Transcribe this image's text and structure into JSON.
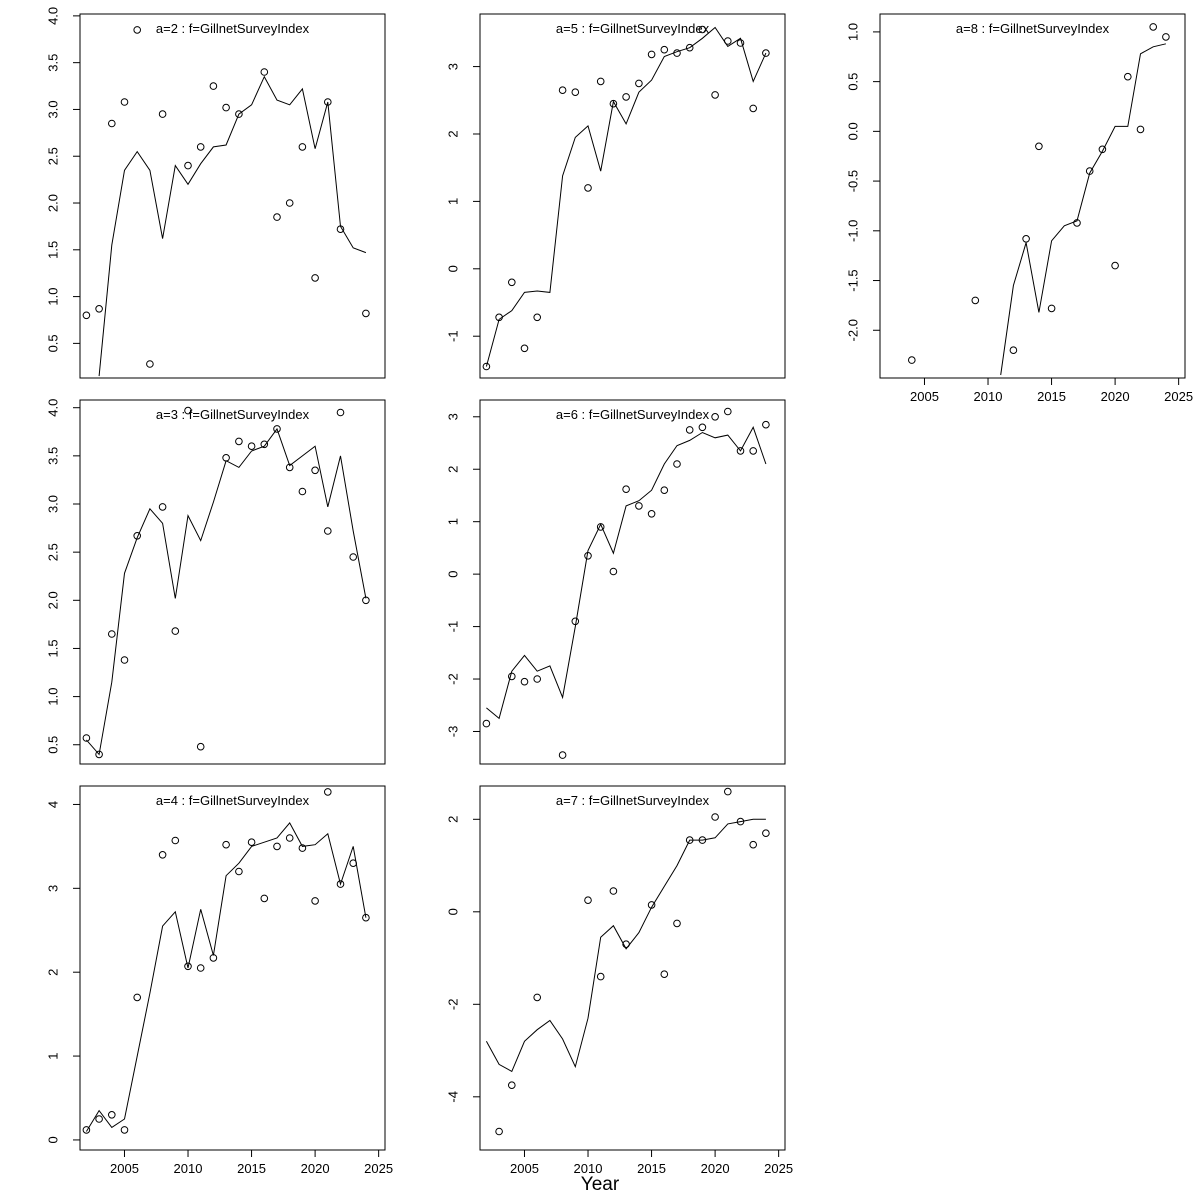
{
  "figure": {
    "xlabel": "Year",
    "xlim": [
      2001.5,
      2025.5
    ],
    "xtick_values": [
      2005,
      2010,
      2015,
      2020,
      2025
    ],
    "xtick_labels": [
      "2005",
      "2010",
      "2015",
      "2020",
      "2025"
    ],
    "line_color": "#000000",
    "point_color": "#000000",
    "title_color": "#7d7d7d",
    "grid_on": false,
    "legend": "none"
  },
  "chart_data": [
    {
      "type": "line",
      "title": "a=2  :  f=GillnetSurveyIndex",
      "age": 2,
      "fleet": "GillnetSurveyIndex",
      "grid_cell": 0,
      "show_x_labels": false,
      "ylim": [
        0.13,
        4.02
      ],
      "ytick_values": [
        0.5,
        1.0,
        1.5,
        2.0,
        2.5,
        3.0,
        3.5,
        4.0
      ],
      "ytick_labels": [
        "0.5",
        "1.0",
        "1.5",
        "2.0",
        "2.5",
        "3.0",
        "3.5",
        "4.0"
      ],
      "points": {
        "x": [
          2002,
          2003,
          2004,
          2005,
          2006,
          2007,
          2008,
          2010,
          2011,
          2012,
          2013,
          2014,
          2016,
          2017,
          2018,
          2019,
          2020,
          2021,
          2022,
          2024
        ],
        "y": [
          0.8,
          0.87,
          2.85,
          3.08,
          3.85,
          0.28,
          2.95,
          2.4,
          2.6,
          3.25,
          3.02,
          2.95,
          3.4,
          1.85,
          2.0,
          2.6,
          1.2,
          3.08,
          1.72,
          0.82
        ]
      },
      "line": {
        "x": [
          2003,
          2004,
          2005,
          2006,
          2007,
          2008,
          2009,
          2010,
          2011,
          2012,
          2013,
          2014,
          2015,
          2016,
          2017,
          2018,
          2019,
          2020,
          2021,
          2022,
          2023,
          2024
        ],
        "y": [
          0.15,
          1.55,
          2.35,
          2.55,
          2.35,
          1.62,
          2.4,
          2.2,
          2.42,
          2.6,
          2.62,
          2.95,
          3.05,
          3.35,
          3.1,
          3.05,
          3.22,
          2.58,
          3.08,
          1.75,
          1.52,
          1.47
        ]
      }
    },
    {
      "type": "line",
      "title": "a=5  :  f=GillnetSurveyIndex",
      "age": 5,
      "fleet": "GillnetSurveyIndex",
      "grid_cell": 1,
      "show_x_labels": false,
      "ylim": [
        -1.62,
        3.78
      ],
      "ytick_values": [
        -1,
        0,
        1,
        2,
        3
      ],
      "ytick_labels": [
        "-1",
        "0",
        "1",
        "2",
        "3"
      ],
      "points": {
        "x": [
          2002,
          2003,
          2004,
          2005,
          2006,
          2008,
          2009,
          2010,
          2011,
          2012,
          2013,
          2014,
          2015,
          2016,
          2017,
          2018,
          2019,
          2020,
          2021,
          2022,
          2023,
          2024
        ],
        "y": [
          -1.45,
          -0.72,
          -0.2,
          -1.18,
          -0.72,
          2.65,
          2.62,
          1.2,
          2.78,
          2.45,
          2.55,
          2.75,
          3.18,
          3.25,
          3.2,
          3.28,
          3.55,
          2.58,
          3.38,
          3.35,
          2.38,
          3.2
        ]
      },
      "line": {
        "x": [
          2002,
          2003,
          2004,
          2005,
          2006,
          2007,
          2008,
          2009,
          2010,
          2011,
          2012,
          2013,
          2014,
          2015,
          2016,
          2017,
          2018,
          2019,
          2020,
          2021,
          2022,
          2023,
          2024
        ],
        "y": [
          -1.45,
          -0.75,
          -0.62,
          -0.35,
          -0.33,
          -0.35,
          1.38,
          1.95,
          2.12,
          1.45,
          2.48,
          2.15,
          2.62,
          2.8,
          3.15,
          3.22,
          3.28,
          3.42,
          3.58,
          3.3,
          3.42,
          2.78,
          3.2
        ]
      }
    },
    {
      "type": "line",
      "title": "a=8  :  f=GillnetSurveyIndex",
      "age": 8,
      "fleet": "GillnetSurveyIndex",
      "grid_cell": 2,
      "show_x_labels": true,
      "ylim": [
        -2.48,
        1.18
      ],
      "ytick_values": [
        -2.0,
        -1.5,
        -1.0,
        -0.5,
        0.0,
        0.5,
        1.0
      ],
      "ytick_labels": [
        "-2.0",
        "-1.5",
        "-1.0",
        "-0.5",
        "0.0",
        "0.5",
        "1.0"
      ],
      "points": {
        "x": [
          2004,
          2009,
          2012,
          2013,
          2014,
          2015,
          2017,
          2018,
          2019,
          2020,
          2021,
          2022,
          2023,
          2024
        ],
        "y": [
          -2.3,
          -1.7,
          -2.2,
          -1.08,
          -0.15,
          -1.78,
          -0.92,
          -0.4,
          -0.18,
          -1.35,
          0.55,
          0.02,
          1.05,
          0.95
        ]
      },
      "line": {
        "x": [
          2011,
          2012,
          2013,
          2014,
          2015,
          2016,
          2017,
          2018,
          2019,
          2020,
          2021,
          2022,
          2023,
          2024
        ],
        "y": [
          -2.45,
          -1.55,
          -1.12,
          -1.82,
          -1.1,
          -0.95,
          -0.9,
          -0.42,
          -0.2,
          0.05,
          0.05,
          0.78,
          0.85,
          0.88
        ]
      }
    },
    {
      "type": "line",
      "title": "a=3  :  f=GillnetSurveyIndex",
      "age": 3,
      "fleet": "GillnetSurveyIndex",
      "grid_cell": 3,
      "show_x_labels": false,
      "ylim": [
        0.3,
        4.08
      ],
      "ytick_values": [
        0.5,
        1.0,
        1.5,
        2.0,
        2.5,
        3.0,
        3.5,
        4.0
      ],
      "ytick_labels": [
        "0.5",
        "1.0",
        "1.5",
        "2.0",
        "2.5",
        "3.0",
        "3.5",
        "4.0"
      ],
      "points": {
        "x": [
          2002,
          2003,
          2004,
          2005,
          2006,
          2008,
          2009,
          2010,
          2011,
          2013,
          2014,
          2015,
          2016,
          2017,
          2018,
          2019,
          2020,
          2021,
          2022,
          2023,
          2024
        ],
        "y": [
          0.57,
          0.4,
          1.65,
          1.38,
          2.67,
          2.97,
          1.68,
          3.97,
          0.48,
          3.48,
          3.65,
          3.6,
          3.62,
          3.78,
          3.38,
          3.13,
          3.35,
          2.72,
          3.95,
          2.45,
          2.0
        ]
      },
      "line": {
        "x": [
          2002,
          2003,
          2004,
          2005,
          2006,
          2007,
          2008,
          2009,
          2010,
          2011,
          2012,
          2013,
          2014,
          2015,
          2016,
          2017,
          2018,
          2019,
          2020,
          2021,
          2022,
          2023,
          2024
        ],
        "y": [
          0.55,
          0.4,
          1.15,
          2.28,
          2.65,
          2.95,
          2.8,
          2.02,
          2.88,
          2.62,
          3.02,
          3.45,
          3.38,
          3.55,
          3.6,
          3.78,
          3.4,
          3.5,
          3.6,
          2.97,
          3.5,
          2.72,
          2.02
        ]
      }
    },
    {
      "type": "line",
      "title": "a=6  :  f=GillnetSurveyIndex",
      "age": 6,
      "fleet": "GillnetSurveyIndex",
      "grid_cell": 4,
      "show_x_labels": false,
      "ylim": [
        -3.62,
        3.32
      ],
      "ytick_values": [
        -3,
        -2,
        -1,
        0,
        1,
        2,
        3
      ],
      "ytick_labels": [
        "-3",
        "-2",
        "-1",
        "0",
        "1",
        "2",
        "3"
      ],
      "points": {
        "x": [
          2002,
          2004,
          2005,
          2006,
          2008,
          2009,
          2010,
          2011,
          2012,
          2013,
          2014,
          2015,
          2016,
          2017,
          2018,
          2019,
          2020,
          2021,
          2022,
          2023,
          2024
        ],
        "y": [
          -2.85,
          -1.95,
          -2.05,
          -2.0,
          -3.45,
          -0.9,
          0.35,
          0.9,
          0.05,
          1.62,
          1.3,
          1.15,
          1.6,
          2.1,
          2.75,
          2.8,
          3.0,
          3.1,
          2.35,
          2.35,
          2.85
        ]
      },
      "line": {
        "x": [
          2002,
          2003,
          2004,
          2005,
          2006,
          2007,
          2008,
          2009,
          2010,
          2011,
          2012,
          2013,
          2014,
          2015,
          2016,
          2017,
          2018,
          2019,
          2020,
          2021,
          2022,
          2023,
          2024
        ],
        "y": [
          -2.55,
          -2.75,
          -1.85,
          -1.55,
          -1.85,
          -1.75,
          -2.35,
          -1.0,
          0.45,
          0.95,
          0.4,
          1.3,
          1.4,
          1.6,
          2.1,
          2.45,
          2.55,
          2.7,
          2.6,
          2.65,
          2.35,
          2.8,
          2.1
        ]
      }
    },
    {
      "type": "line",
      "title": "a=4  :  f=GillnetSurveyIndex",
      "age": 4,
      "fleet": "GillnetSurveyIndex",
      "grid_cell": 6,
      "show_x_labels": true,
      "ylim": [
        -0.12,
        4.22
      ],
      "ytick_values": [
        0,
        1,
        2,
        3,
        4
      ],
      "ytick_labels": [
        "0",
        "1",
        "2",
        "3",
        "4"
      ],
      "points": {
        "x": [
          2002,
          2003,
          2004,
          2005,
          2006,
          2008,
          2009,
          2010,
          2011,
          2012,
          2013,
          2014,
          2015,
          2016,
          2017,
          2018,
          2019,
          2020,
          2021,
          2022,
          2023,
          2024
        ],
        "y": [
          0.12,
          0.25,
          0.3,
          0.12,
          1.7,
          3.4,
          3.57,
          2.07,
          2.05,
          2.17,
          3.52,
          3.2,
          3.55,
          2.88,
          3.5,
          3.6,
          3.48,
          2.85,
          4.15,
          3.05,
          3.3,
          2.65
        ]
      },
      "line": {
        "x": [
          2002,
          2003,
          2004,
          2005,
          2006,
          2007,
          2008,
          2009,
          2010,
          2011,
          2012,
          2013,
          2014,
          2015,
          2016,
          2017,
          2018,
          2019,
          2020,
          2021,
          2022,
          2023,
          2024
        ],
        "y": [
          0.1,
          0.35,
          0.15,
          0.25,
          1.0,
          1.75,
          2.55,
          2.72,
          2.05,
          2.75,
          2.2,
          3.15,
          3.3,
          3.5,
          3.55,
          3.6,
          3.78,
          3.5,
          3.52,
          3.65,
          3.05,
          3.5,
          2.65
        ]
      }
    },
    {
      "type": "line",
      "title": "a=7  :  f=GillnetSurveyIndex",
      "age": 7,
      "fleet": "GillnetSurveyIndex",
      "grid_cell": 7,
      "show_x_labels": true,
      "ylim": [
        -5.15,
        2.72
      ],
      "ytick_values": [
        -4,
        -2,
        0,
        2
      ],
      "ytick_labels": [
        "-4",
        "-2",
        "0",
        "2"
      ],
      "points": {
        "x": [
          2003,
          2004,
          2006,
          2010,
          2011,
          2012,
          2013,
          2015,
          2016,
          2017,
          2018,
          2019,
          2020,
          2021,
          2022,
          2023,
          2024
        ],
        "y": [
          -4.75,
          -3.75,
          -1.85,
          0.25,
          -1.4,
          0.45,
          -0.7,
          0.15,
          -1.35,
          -0.25,
          1.55,
          1.55,
          2.05,
          2.6,
          1.95,
          1.45,
          1.7
        ]
      },
      "line": {
        "x": [
          2002,
          2003,
          2004,
          2005,
          2006,
          2007,
          2008,
          2009,
          2010,
          2011,
          2012,
          2013,
          2014,
          2015,
          2016,
          2017,
          2018,
          2019,
          2020,
          2021,
          2022,
          2023,
          2024
        ],
        "y": [
          -2.8,
          -3.3,
          -3.45,
          -2.8,
          -2.55,
          -2.35,
          -2.75,
          -3.35,
          -2.3,
          -0.55,
          -0.3,
          -0.8,
          -0.45,
          0.1,
          0.55,
          1.0,
          1.55,
          1.55,
          1.6,
          1.9,
          1.95,
          2.0,
          2.0
        ]
      }
    }
  ]
}
